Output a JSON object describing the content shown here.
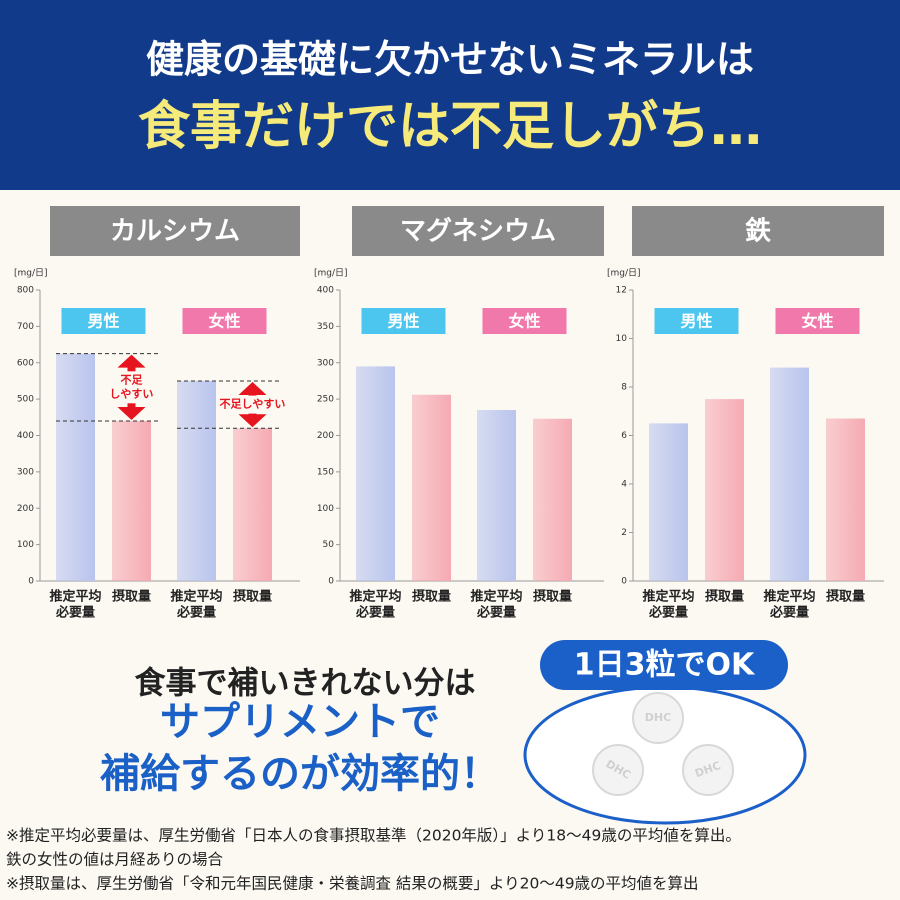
{
  "header": {
    "line1": "健康の基礎に欠かせないミネラルは",
    "line2": "食事だけでは不足しがち…"
  },
  "chart_data": [
    {
      "type": "bar",
      "title": "カルシウム",
      "y_unit": "[mg/日]",
      "ylim": [
        0,
        800
      ],
      "yticks": [
        0,
        100,
        200,
        300,
        400,
        500,
        600,
        700,
        800
      ],
      "groups": [
        {
          "name": "男性",
          "color": "#4cc6ef"
        },
        {
          "name": "女性",
          "color": "#f078aa"
        }
      ],
      "categories": [
        [
          "推定平均",
          "必要量"
        ],
        [
          "摂取量"
        ],
        [
          "推定平均",
          "必要量"
        ],
        [
          "摂取量"
        ]
      ],
      "values": [
        625,
        440,
        550,
        420
      ],
      "colors": [
        "#b9c4ee",
        "#f6aab3",
        "#b9c4ee",
        "#f6aab3"
      ],
      "annotations": [
        [
          "不足",
          "しやすい"
        ],
        [
          "不足しやすい"
        ]
      ]
    },
    {
      "type": "bar",
      "title": "マグネシウム",
      "y_unit": "[mg/日]",
      "ylim": [
        0,
        400
      ],
      "yticks": [
        0,
        50,
        100,
        150,
        200,
        250,
        300,
        350,
        400
      ],
      "groups": [
        {
          "name": "男性",
          "color": "#4cc6ef"
        },
        {
          "name": "女性",
          "color": "#f078aa"
        }
      ],
      "categories": [
        [
          "推定平均",
          "必要量"
        ],
        [
          "摂取量"
        ],
        [
          "推定平均",
          "必要量"
        ],
        [
          "摂取量"
        ]
      ],
      "values": [
        295,
        256,
        235,
        223
      ],
      "colors": [
        "#b9c4ee",
        "#f6aab3",
        "#b9c4ee",
        "#f6aab3"
      ]
    },
    {
      "type": "bar",
      "title": "鉄",
      "y_unit": "[mg/日]",
      "ylim": [
        0,
        12
      ],
      "yticks": [
        0,
        2,
        4,
        6,
        8,
        10,
        12
      ],
      "groups": [
        {
          "name": "男性",
          "color": "#4cc6ef"
        },
        {
          "name": "女性",
          "color": "#f078aa"
        }
      ],
      "categories": [
        [
          "推定平均",
          "必要量"
        ],
        [
          "摂取量"
        ],
        [
          "推定平均",
          "必要量"
        ],
        [
          "摂取量"
        ]
      ],
      "values": [
        6.5,
        7.5,
        8.8,
        6.7
      ],
      "colors": [
        "#b9c4ee",
        "#f6aab3",
        "#b9c4ee",
        "#f6aab3"
      ]
    }
  ],
  "promo": {
    "line1": "食事で補いきれない分は",
    "line2": "サプリメントで",
    "line3": "補給するのが効率的！"
  },
  "badge": "1日3粒でOK",
  "tablet_label": "DHC",
  "footnotes": [
    "※推定平均必要量は、厚生労働省「日本人の食事摂取基準（2020年版）」より18～49歳の平均値を算出。",
    "鉄の女性の値は月経ありの場合",
    "※摂取量は、厚生労働省「令和元年国民健康・栄養調査 結果の概要」より20～49歳の平均値を算出"
  ]
}
